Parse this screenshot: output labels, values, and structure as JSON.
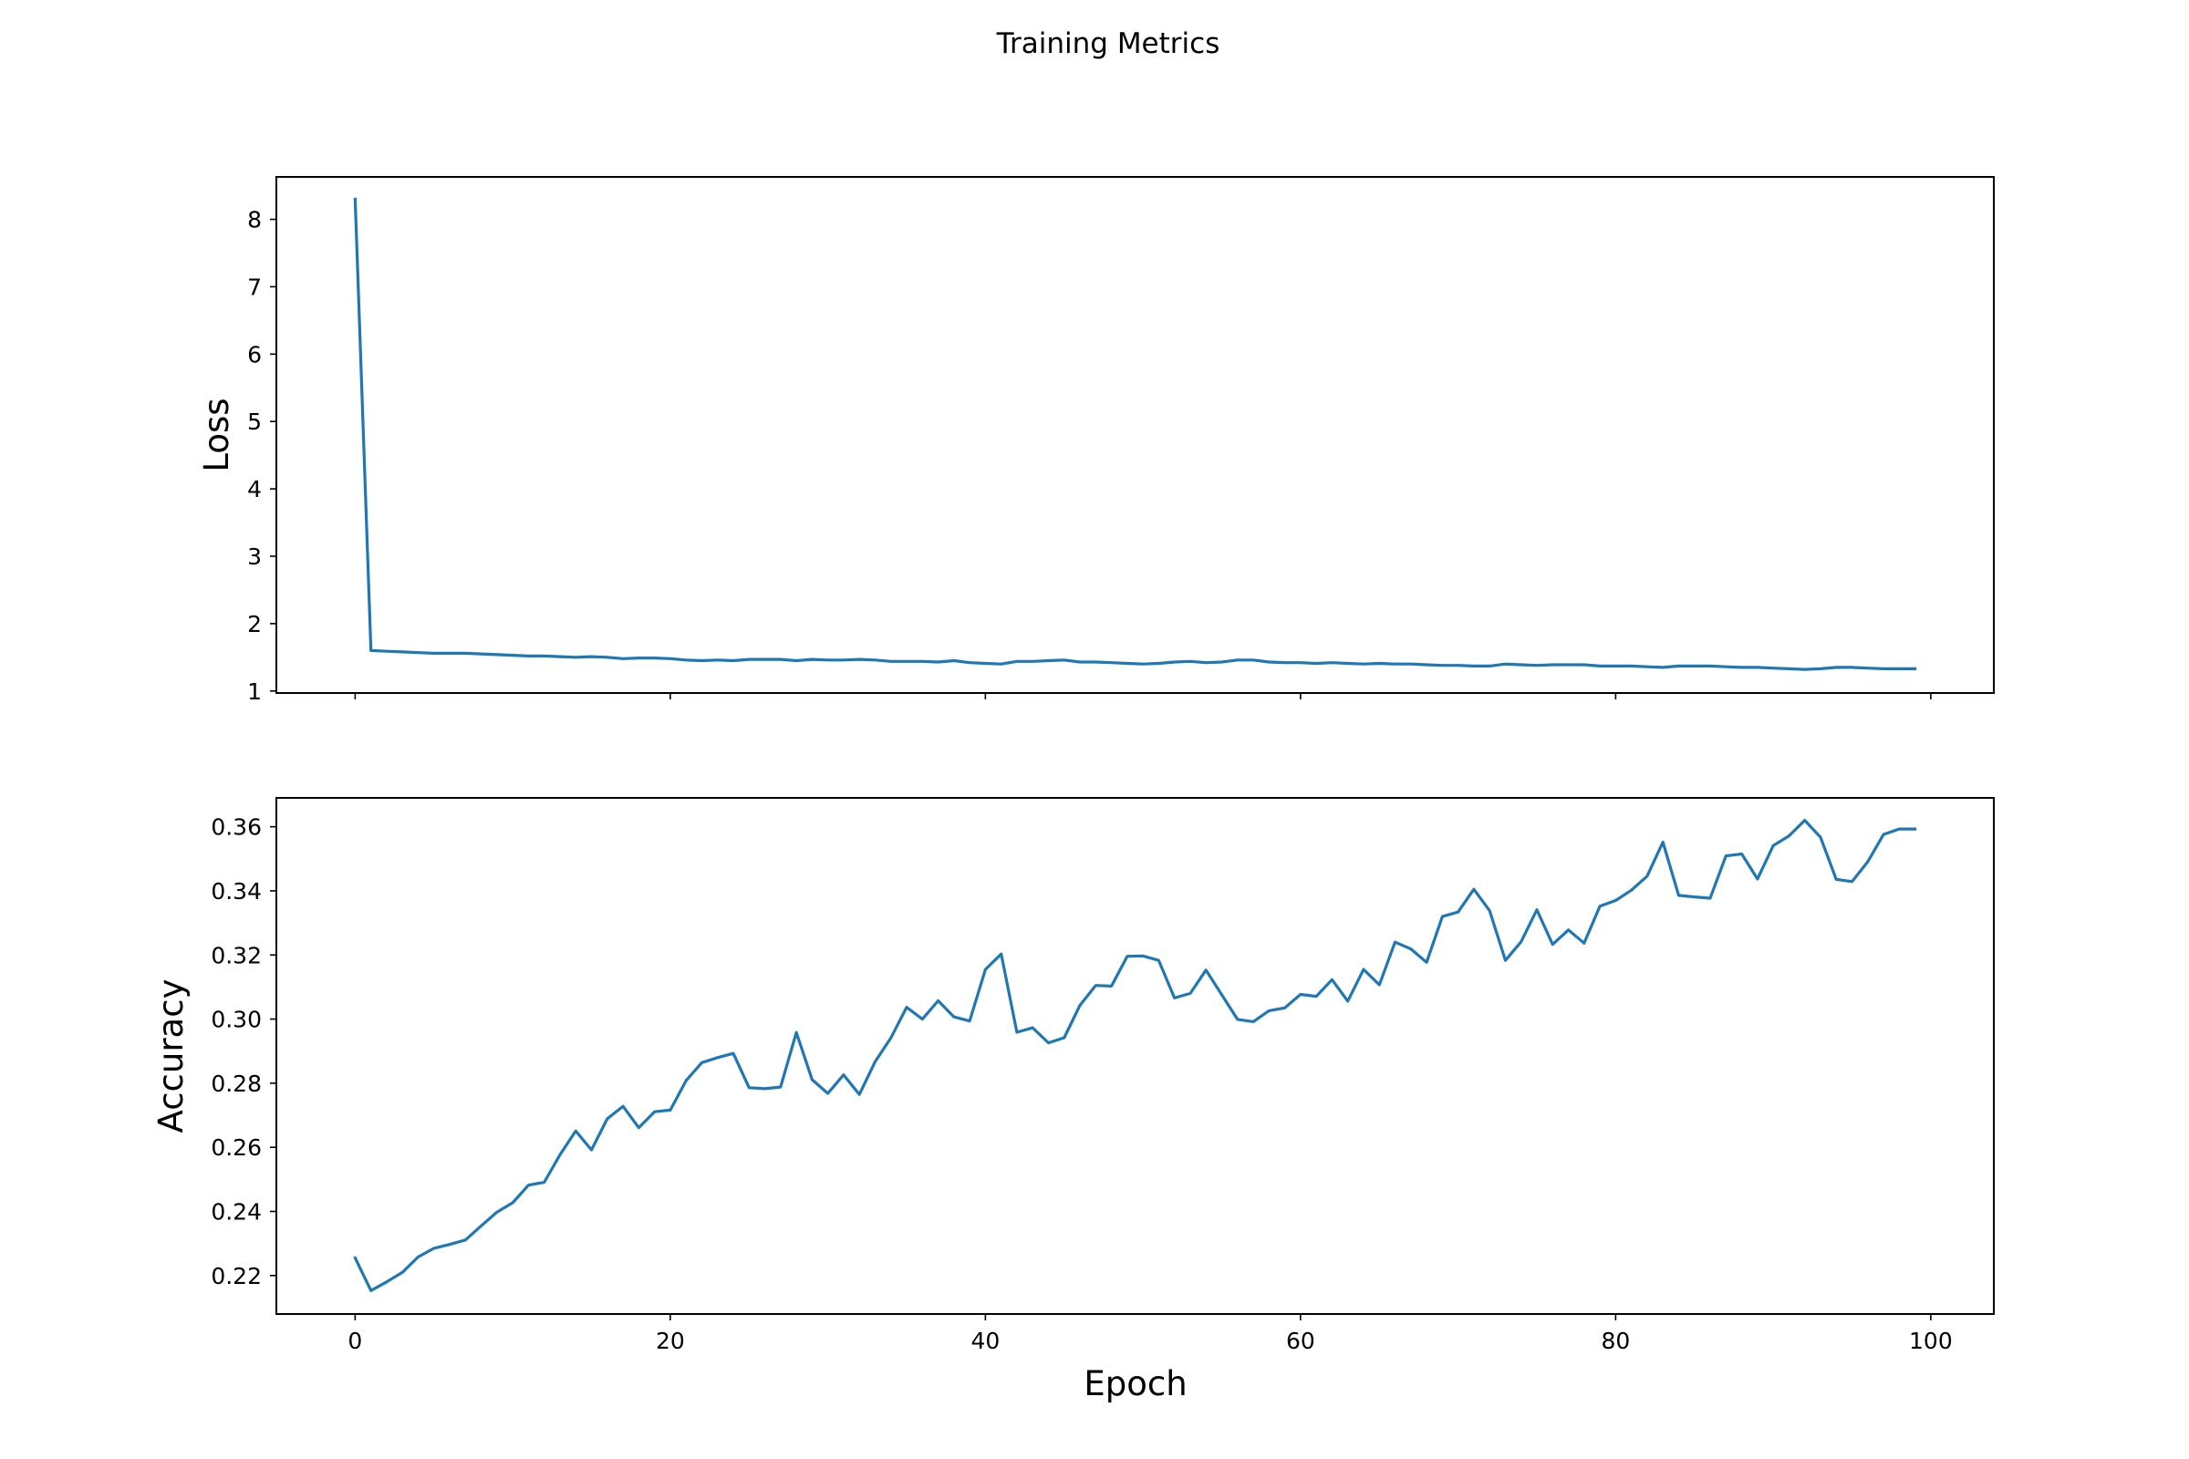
{
  "figure": {
    "title": "Training Metrics",
    "xlabel": "Epoch",
    "line_color": "#1f77b4"
  },
  "chart_data": [
    {
      "type": "line",
      "title": "",
      "xlabel": "",
      "ylabel": "Loss",
      "xlim": [
        -5,
        104
      ],
      "ylim": [
        0.97,
        8.63
      ],
      "xticks": [
        0,
        20,
        40,
        60,
        80,
        100
      ],
      "yticks": [
        1,
        2,
        3,
        4,
        5,
        6,
        7,
        8
      ],
      "x": [
        0,
        1,
        2,
        3,
        4,
        5,
        6,
        7,
        8,
        9,
        10,
        11,
        12,
        13,
        14,
        15,
        16,
        17,
        18,
        19,
        20,
        21,
        22,
        23,
        24,
        25,
        26,
        27,
        28,
        29,
        30,
        31,
        32,
        33,
        34,
        35,
        36,
        37,
        38,
        39,
        40,
        41,
        42,
        43,
        44,
        45,
        46,
        47,
        48,
        49,
        50,
        51,
        52,
        53,
        54,
        55,
        56,
        57,
        58,
        59,
        60,
        61,
        62,
        63,
        64,
        65,
        66,
        67,
        68,
        69,
        70,
        71,
        72,
        73,
        74,
        75,
        76,
        77,
        78,
        79,
        80,
        81,
        82,
        83,
        84,
        85,
        86,
        87,
        88,
        89,
        90,
        91,
        92,
        93,
        94,
        95,
        96,
        97,
        98,
        99
      ],
      "series": [
        {
          "values": [
            8.3,
            1.6,
            1.59,
            1.58,
            1.57,
            1.56,
            1.56,
            1.56,
            1.55,
            1.54,
            1.53,
            1.52,
            1.52,
            1.51,
            1.5,
            1.51,
            1.5,
            1.48,
            1.49,
            1.49,
            1.48,
            1.46,
            1.45,
            1.46,
            1.45,
            1.47,
            1.47,
            1.47,
            1.45,
            1.47,
            1.46,
            1.46,
            1.47,
            1.46,
            1.44,
            1.44,
            1.44,
            1.43,
            1.45,
            1.42,
            1.41,
            1.4,
            1.44,
            1.44,
            1.45,
            1.46,
            1.43,
            1.43,
            1.42,
            1.41,
            1.4,
            1.41,
            1.43,
            1.44,
            1.42,
            1.43,
            1.46,
            1.46,
            1.43,
            1.42,
            1.42,
            1.41,
            1.42,
            1.41,
            1.4,
            1.41,
            1.4,
            1.4,
            1.39,
            1.38,
            1.38,
            1.37,
            1.37,
            1.4,
            1.39,
            1.38,
            1.39,
            1.39,
            1.39,
            1.37,
            1.37,
            1.37,
            1.36,
            1.35,
            1.37,
            1.37,
            1.37,
            1.36,
            1.35,
            1.35,
            1.34,
            1.33,
            1.32,
            1.33,
            1.35,
            1.35,
            1.34,
            1.33,
            1.33,
            1.33
          ]
        }
      ]
    },
    {
      "type": "line",
      "title": "",
      "xlabel": "Epoch",
      "ylabel": "Accuracy",
      "xlim": [
        -5,
        104
      ],
      "ylim": [
        0.208,
        0.369
      ],
      "xticks": [
        0,
        20,
        40,
        60,
        80,
        100
      ],
      "yticks": [
        0.22,
        0.24,
        0.26,
        0.28,
        0.3,
        0.32,
        0.34,
        0.36
      ],
      "ytick_labels": [
        "0.22",
        "0.24",
        "0.26",
        "0.28",
        "0.30",
        "0.32",
        "0.34",
        "0.36"
      ],
      "x": [
        0,
        1,
        2,
        3,
        4,
        5,
        6,
        7,
        8,
        9,
        10,
        11,
        12,
        13,
        14,
        15,
        16,
        17,
        18,
        19,
        20,
        21,
        22,
        23,
        24,
        25,
        26,
        27,
        28,
        29,
        30,
        31,
        32,
        33,
        34,
        35,
        36,
        37,
        38,
        39,
        40,
        41,
        42,
        43,
        44,
        45,
        46,
        47,
        48,
        49,
        50,
        51,
        52,
        53,
        54,
        55,
        56,
        57,
        58,
        59,
        60,
        61,
        62,
        63,
        64,
        65,
        66,
        67,
        68,
        69,
        70,
        71,
        72,
        73,
        74,
        75,
        76,
        77,
        78,
        79,
        80,
        81,
        82,
        83,
        84,
        85,
        86,
        87,
        88,
        89,
        90,
        91,
        92,
        93,
        94,
        95,
        96,
        97,
        98,
        99
      ],
      "series": [
        {
          "values": [
            0.2255,
            0.2153,
            0.218,
            0.221,
            0.2258,
            0.2285,
            0.2297,
            0.2311,
            0.2355,
            0.2398,
            0.2427,
            0.2482,
            0.2491,
            0.2577,
            0.2651,
            0.2592,
            0.2689,
            0.2728,
            0.2661,
            0.2711,
            0.2716,
            0.2808,
            0.2864,
            0.288,
            0.2893,
            0.2786,
            0.2783,
            0.2788,
            0.2958,
            0.2811,
            0.2768,
            0.2826,
            0.2765,
            0.2867,
            0.2941,
            0.3037,
            0.3,
            0.3057,
            0.3007,
            0.2994,
            0.3155,
            0.3203,
            0.2959,
            0.2973,
            0.2926,
            0.2942,
            0.3043,
            0.3105,
            0.3103,
            0.3196,
            0.3197,
            0.3183,
            0.3066,
            0.308,
            0.3153,
            0.3076,
            0.2999,
            0.2992,
            0.3026,
            0.3035,
            0.3077,
            0.3071,
            0.3123,
            0.3056,
            0.3155,
            0.3107,
            0.324,
            0.3219,
            0.3177,
            0.332,
            0.3334,
            0.3405,
            0.3338,
            0.3183,
            0.3241,
            0.3341,
            0.3233,
            0.3278,
            0.3237,
            0.3352,
            0.337,
            0.3402,
            0.3446,
            0.3552,
            0.3386,
            0.3381,
            0.3377,
            0.3509,
            0.3515,
            0.3437,
            0.3541,
            0.3571,
            0.362,
            0.3567,
            0.3436,
            0.3429,
            0.3491,
            0.3576,
            0.3593,
            0.3593
          ]
        }
      ]
    }
  ]
}
